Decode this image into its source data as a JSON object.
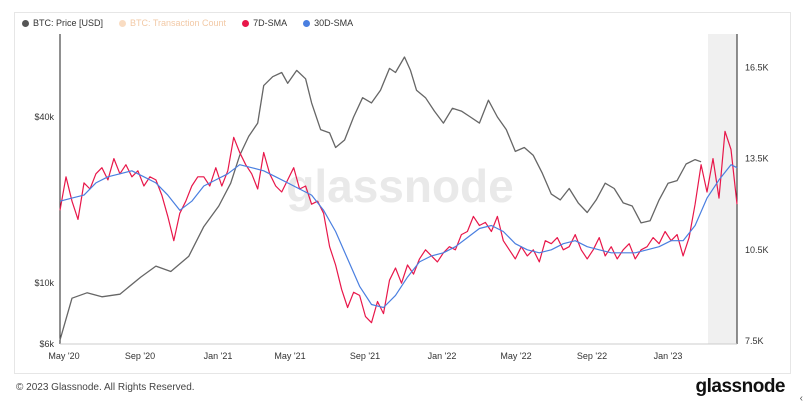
{
  "legend": [
    {
      "label": "BTC: Price [USD]",
      "color": "#555555"
    },
    {
      "label": "BTC: Transaction Count",
      "color": "#f4b183"
    },
    {
      "label": "7D-SMA",
      "color": "#e8174a"
    },
    {
      "label": "30D-SMA",
      "color": "#4a7fe0"
    }
  ],
  "watermark": "glassnode",
  "footer": {
    "copyright": "© 2023 Glassnode. All Rights Reserved.",
    "logo": "glassnode"
  },
  "chart_data": {
    "type": "line",
    "x_axis": {
      "ticks": [
        "May '20",
        "Sep '20",
        "Jan '21",
        "May '21",
        "Sep '21",
        "Jan '22",
        "May '22",
        "Sep '22",
        "Jan '23"
      ]
    },
    "y_left": {
      "scale": "log",
      "ticks": [
        "$6k",
        "$10k",
        "$40k"
      ],
      "range": [
        6000,
        80000
      ]
    },
    "y_right": {
      "scale": "linear",
      "ticks": [
        "7.5K",
        "10.5K",
        "13.5K",
        "16.5K"
      ],
      "range": [
        7400,
        17600
      ]
    },
    "series": [
      {
        "name": "BTC: Price [USD]",
        "axis": "left",
        "color": "#666666",
        "points": [
          [
            0,
            6200
          ],
          [
            4,
            8800
          ],
          [
            9,
            9200
          ],
          [
            14,
            8900
          ],
          [
            20,
            9100
          ],
          [
            27,
            10500
          ],
          [
            32,
            11500
          ],
          [
            37,
            11000
          ],
          [
            43,
            12500
          ],
          [
            48,
            16000
          ],
          [
            53,
            19000
          ],
          [
            57,
            23000
          ],
          [
            60,
            29000
          ],
          [
            63,
            34000
          ],
          [
            66,
            38000
          ],
          [
            68,
            52000
          ],
          [
            71,
            56000
          ],
          [
            74,
            58000
          ],
          [
            76,
            53000
          ],
          [
            79,
            59000
          ],
          [
            82,
            55000
          ],
          [
            84,
            45000
          ],
          [
            87,
            36000
          ],
          [
            90,
            35000
          ],
          [
            92,
            31000
          ],
          [
            95,
            33000
          ],
          [
            98,
            40000
          ],
          [
            101,
            47000
          ],
          [
            104,
            45000
          ],
          [
            107,
            50000
          ],
          [
            110,
            60000
          ],
          [
            112,
            58000
          ],
          [
            115,
            66000
          ],
          [
            117,
            59000
          ],
          [
            119,
            50000
          ],
          [
            122,
            47000
          ],
          [
            125,
            42000
          ],
          [
            128,
            38000
          ],
          [
            131,
            43000
          ],
          [
            134,
            42000
          ],
          [
            137,
            40000
          ],
          [
            140,
            38000
          ],
          [
            143,
            46000
          ],
          [
            146,
            40000
          ],
          [
            149,
            36000
          ],
          [
            152,
            30000
          ],
          [
            155,
            31000
          ],
          [
            158,
            29000
          ],
          [
            161,
            25000
          ],
          [
            164,
            21000
          ],
          [
            167,
            20000
          ],
          [
            170,
            22000
          ],
          [
            173,
            19500
          ],
          [
            176,
            18000
          ],
          [
            179,
            20000
          ],
          [
            182,
            23000
          ],
          [
            185,
            22000
          ],
          [
            188,
            19500
          ],
          [
            191,
            19000
          ],
          [
            194,
            16500
          ],
          [
            197,
            16800
          ],
          [
            200,
            20000
          ],
          [
            203,
            23000
          ],
          [
            206,
            23500
          ],
          [
            209,
            27000
          ],
          [
            212,
            28000
          ],
          [
            214,
            27500
          ]
        ]
      },
      {
        "name": "7D-SMA",
        "axis": "right",
        "color": "#e8174a",
        "points": [
          [
            0,
            11800
          ],
          [
            2,
            12900
          ],
          [
            4,
            12100
          ],
          [
            6,
            11500
          ],
          [
            8,
            12700
          ],
          [
            10,
            12500
          ],
          [
            12,
            13000
          ],
          [
            14,
            13200
          ],
          [
            16,
            12800
          ],
          [
            18,
            13500
          ],
          [
            20,
            13000
          ],
          [
            22,
            13300
          ],
          [
            24,
            12900
          ],
          [
            26,
            13100
          ],
          [
            28,
            12600
          ],
          [
            30,
            12900
          ],
          [
            32,
            12800
          ],
          [
            34,
            12300
          ],
          [
            36,
            11600
          ],
          [
            38,
            10800
          ],
          [
            40,
            11700
          ],
          [
            42,
            12100
          ],
          [
            44,
            12600
          ],
          [
            46,
            12900
          ],
          [
            48,
            12900
          ],
          [
            50,
            12600
          ],
          [
            52,
            13200
          ],
          [
            54,
            12600
          ],
          [
            56,
            13100
          ],
          [
            58,
            14200
          ],
          [
            60,
            13700
          ],
          [
            62,
            13300
          ],
          [
            64,
            13000
          ],
          [
            66,
            12500
          ],
          [
            68,
            13700
          ],
          [
            70,
            13000
          ],
          [
            72,
            12600
          ],
          [
            74,
            12400
          ],
          [
            76,
            12800
          ],
          [
            78,
            13200
          ],
          [
            80,
            12500
          ],
          [
            82,
            12600
          ],
          [
            84,
            12000
          ],
          [
            86,
            12100
          ],
          [
            88,
            11700
          ],
          [
            90,
            10600
          ],
          [
            92,
            10000
          ],
          [
            94,
            9200
          ],
          [
            96,
            8600
          ],
          [
            98,
            9100
          ],
          [
            100,
            9000
          ],
          [
            102,
            8300
          ],
          [
            104,
            8100
          ],
          [
            106,
            8800
          ],
          [
            108,
            8400
          ],
          [
            110,
            9500
          ],
          [
            112,
            9900
          ],
          [
            114,
            9400
          ],
          [
            116,
            10000
          ],
          [
            118,
            9700
          ],
          [
            120,
            10200
          ],
          [
            122,
            10500
          ],
          [
            124,
            10300
          ],
          [
            126,
            10100
          ],
          [
            128,
            10400
          ],
          [
            130,
            10600
          ],
          [
            132,
            10500
          ],
          [
            134,
            11000
          ],
          [
            136,
            11100
          ],
          [
            138,
            11600
          ],
          [
            140,
            11300
          ],
          [
            142,
            11400
          ],
          [
            144,
            11100
          ],
          [
            146,
            11600
          ],
          [
            148,
            10800
          ],
          [
            150,
            10500
          ],
          [
            152,
            10200
          ],
          [
            154,
            10600
          ],
          [
            156,
            10300
          ],
          [
            158,
            10500
          ],
          [
            160,
            10100
          ],
          [
            162,
            10800
          ],
          [
            164,
            10700
          ],
          [
            166,
            10900
          ],
          [
            168,
            10500
          ],
          [
            170,
            10600
          ],
          [
            172,
            11000
          ],
          [
            174,
            10500
          ],
          [
            176,
            10200
          ],
          [
            178,
            10500
          ],
          [
            180,
            10900
          ],
          [
            182,
            10300
          ],
          [
            184,
            10600
          ],
          [
            186,
            10200
          ],
          [
            188,
            10500
          ],
          [
            190,
            10700
          ],
          [
            192,
            10200
          ],
          [
            194,
            10500
          ],
          [
            196,
            10600
          ],
          [
            198,
            10900
          ],
          [
            200,
            10700
          ],
          [
            202,
            11100
          ],
          [
            204,
            10800
          ],
          [
            206,
            11000
          ],
          [
            208,
            10300
          ],
          [
            210,
            10900
          ],
          [
            212,
            12000
          ],
          [
            214,
            13300
          ],
          [
            216,
            12400
          ],
          [
            218,
            13500
          ],
          [
            220,
            12200
          ],
          [
            222,
            14400
          ],
          [
            224,
            13800
          ],
          [
            226,
            12000
          ]
        ]
      },
      {
        "name": "30D-SMA",
        "axis": "right",
        "color": "#4a7fe0",
        "points": [
          [
            0,
            12100
          ],
          [
            4,
            12200
          ],
          [
            8,
            12300
          ],
          [
            12,
            12700
          ],
          [
            16,
            12900
          ],
          [
            20,
            13000
          ],
          [
            24,
            13100
          ],
          [
            28,
            12900
          ],
          [
            32,
            12700
          ],
          [
            36,
            12300
          ],
          [
            40,
            11800
          ],
          [
            44,
            12100
          ],
          [
            48,
            12600
          ],
          [
            52,
            12800
          ],
          [
            56,
            13000
          ],
          [
            60,
            13300
          ],
          [
            64,
            13200
          ],
          [
            68,
            13100
          ],
          [
            72,
            12900
          ],
          [
            76,
            12700
          ],
          [
            80,
            12500
          ],
          [
            84,
            12300
          ],
          [
            88,
            11800
          ],
          [
            92,
            11100
          ],
          [
            96,
            10200
          ],
          [
            100,
            9300
          ],
          [
            104,
            8700
          ],
          [
            108,
            8600
          ],
          [
            112,
            9000
          ],
          [
            116,
            9600
          ],
          [
            120,
            10100
          ],
          [
            124,
            10300
          ],
          [
            128,
            10400
          ],
          [
            132,
            10600
          ],
          [
            136,
            10900
          ],
          [
            140,
            11200
          ],
          [
            144,
            11300
          ],
          [
            148,
            11100
          ],
          [
            152,
            10700
          ],
          [
            156,
            10500
          ],
          [
            160,
            10400
          ],
          [
            164,
            10500
          ],
          [
            168,
            10700
          ],
          [
            172,
            10800
          ],
          [
            176,
            10600
          ],
          [
            180,
            10500
          ],
          [
            184,
            10400
          ],
          [
            188,
            10400
          ],
          [
            192,
            10400
          ],
          [
            196,
            10500
          ],
          [
            200,
            10600
          ],
          [
            204,
            10800
          ],
          [
            208,
            10800
          ],
          [
            212,
            11300
          ],
          [
            216,
            12200
          ],
          [
            220,
            12800
          ],
          [
            224,
            13300
          ],
          [
            226,
            13200
          ]
        ]
      }
    ],
    "legend_position": "top-left",
    "grid": false
  }
}
